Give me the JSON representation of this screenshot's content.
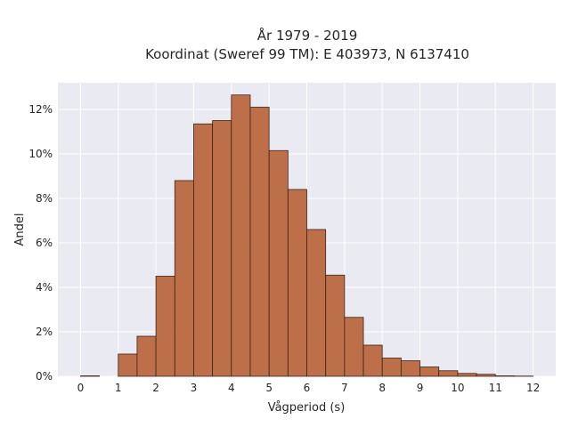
{
  "chart_data": {
    "type": "bar",
    "title_lines": [
      "År 1979 - 2019",
      "Koordinat (Sweref 99 TM): E 403973, N 6137410"
    ],
    "xlabel": "Vågperiod (s)",
    "ylabel": "Andel",
    "x_ticks": [
      0,
      1,
      2,
      3,
      4,
      5,
      6,
      7,
      8,
      9,
      10,
      11,
      12
    ],
    "y_ticks": [
      0,
      2,
      4,
      6,
      8,
      10,
      12
    ],
    "y_tick_suffix": "%",
    "xlim": [
      -0.6,
      12.6
    ],
    "ylim": [
      0,
      13.2
    ],
    "bin_width": 0.5,
    "bins": [
      {
        "x0": 0.0,
        "value": 0.02
      },
      {
        "x0": 0.5,
        "value": 0.0
      },
      {
        "x0": 1.0,
        "value": 1.0
      },
      {
        "x0": 1.5,
        "value": 1.8
      },
      {
        "x0": 2.0,
        "value": 4.5
      },
      {
        "x0": 2.5,
        "value": 8.8
      },
      {
        "x0": 3.0,
        "value": 11.35
      },
      {
        "x0": 3.5,
        "value": 11.5
      },
      {
        "x0": 4.0,
        "value": 12.65
      },
      {
        "x0": 4.5,
        "value": 12.1
      },
      {
        "x0": 5.0,
        "value": 10.15
      },
      {
        "x0": 5.5,
        "value": 8.4
      },
      {
        "x0": 6.0,
        "value": 6.6
      },
      {
        "x0": 6.5,
        "value": 4.55
      },
      {
        "x0": 7.0,
        "value": 2.65
      },
      {
        "x0": 7.5,
        "value": 1.4
      },
      {
        "x0": 8.0,
        "value": 0.82
      },
      {
        "x0": 8.5,
        "value": 0.7
      },
      {
        "x0": 9.0,
        "value": 0.42
      },
      {
        "x0": 9.5,
        "value": 0.25
      },
      {
        "x0": 10.0,
        "value": 0.13
      },
      {
        "x0": 10.5,
        "value": 0.09
      },
      {
        "x0": 11.0,
        "value": 0.02
      },
      {
        "x0": 11.5,
        "value": 0.01
      }
    ],
    "grid": true,
    "colors": {
      "bar_fill": "#b9683e",
      "bar_edge": "#3d2418",
      "plot_background": "#eaeaf2",
      "grid": "#ffffff"
    }
  }
}
